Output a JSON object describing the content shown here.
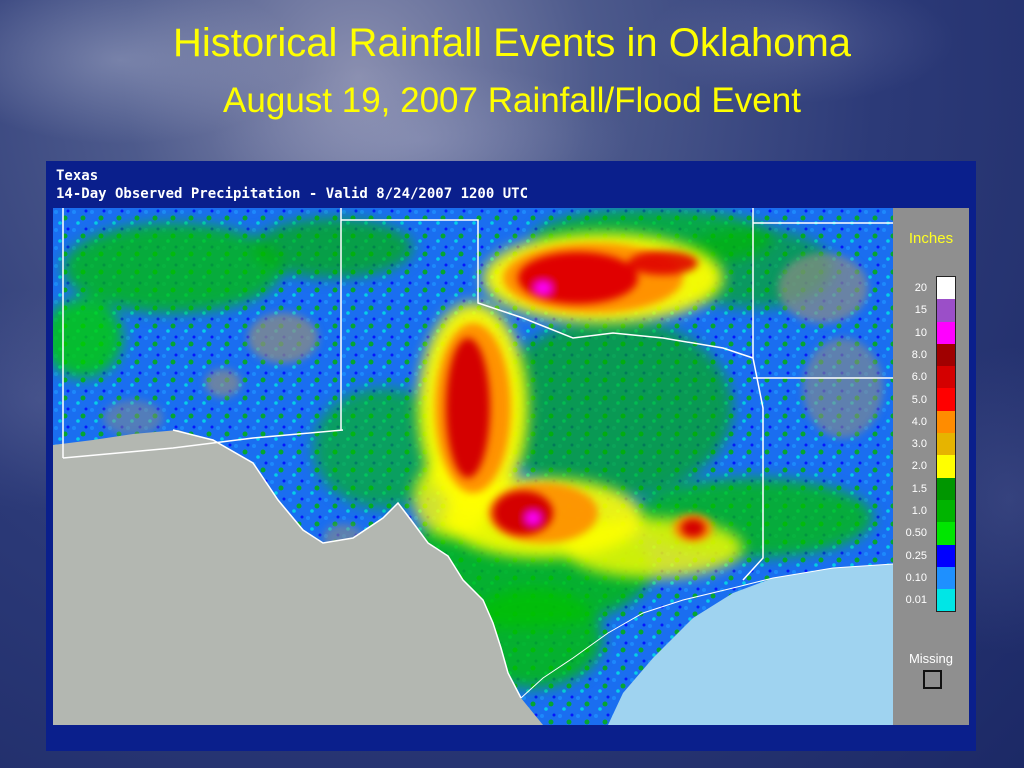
{
  "slide": {
    "title": "Historical Rainfall Events in Oklahoma",
    "subtitle": "August 19, 2007 Rainfall/Flood Event"
  },
  "map": {
    "region": "Texas",
    "product": "14-Day Observed Precipitation - Valid 8/24/2007 1200 UTC",
    "colors": {
      "land_outside": "#b3b7b1",
      "gulf_water": "#9fd3f0",
      "frame": "#0a1f8c",
      "boundary_lines": "#ffffff"
    }
  },
  "legend": {
    "units": "Inches",
    "missing_label": "Missing",
    "entries": [
      {
        "label": "20",
        "color": "#ffffff"
      },
      {
        "label": "15",
        "color": "#9b4fc8"
      },
      {
        "label": "10",
        "color": "#ff00ff"
      },
      {
        "label": "8.0",
        "color": "#a00000"
      },
      {
        "label": "6.0",
        "color": "#d40000"
      },
      {
        "label": "5.0",
        "color": "#ff0000"
      },
      {
        "label": "4.0",
        "color": "#ff8c00"
      },
      {
        "label": "3.0",
        "color": "#e6b400"
      },
      {
        "label": "2.0",
        "color": "#ffff00"
      },
      {
        "label": "1.5",
        "color": "#009600"
      },
      {
        "label": "1.0",
        "color": "#00b400"
      },
      {
        "label": "0.50",
        "color": "#00e600"
      },
      {
        "label": "0.25",
        "color": "#0000ff"
      },
      {
        "label": "0.10",
        "color": "#1e90ff"
      },
      {
        "label": "0.01",
        "color": "#00e6e6"
      }
    ]
  }
}
